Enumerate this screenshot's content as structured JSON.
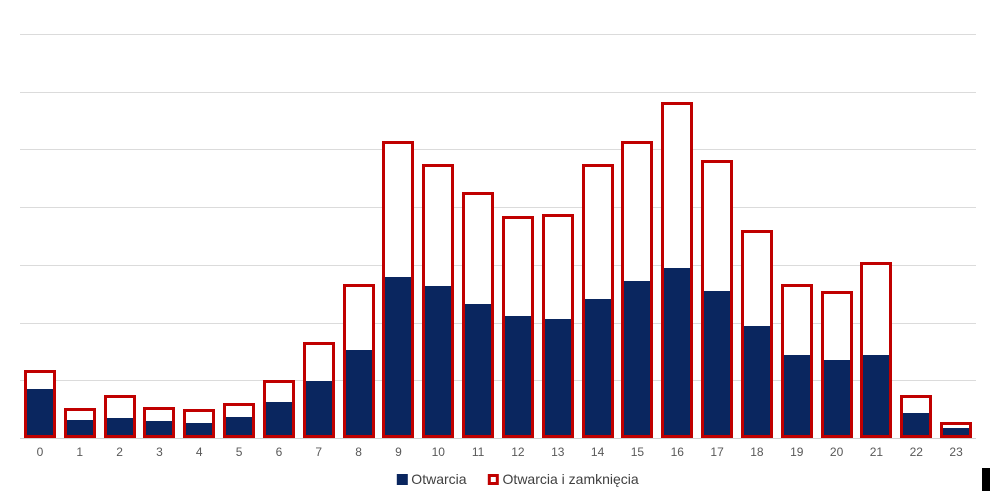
{
  "chart_data": {
    "type": "bar",
    "title": "",
    "xlabel": "",
    "ylabel": "",
    "categories": [
      "0",
      "1",
      "2",
      "3",
      "4",
      "5",
      "6",
      "7",
      "8",
      "9",
      "10",
      "11",
      "12",
      "13",
      "14",
      "15",
      "16",
      "17",
      "18",
      "19",
      "20",
      "21",
      "22",
      "23"
    ],
    "series": [
      {
        "name": "Otwarcia",
        "style": "filled",
        "color": "#0A265F",
        "values": [
          85,
          32,
          35,
          29,
          26,
          36,
          63,
          99,
          152,
          279,
          264,
          233,
          212,
          206,
          241,
          272,
          295,
          255,
          194,
          143,
          136,
          144,
          44,
          18
        ]
      },
      {
        "name": "Otwarcia i zamknięcia",
        "style": "outlined",
        "color": "#C00000",
        "values": [
          117,
          52,
          75,
          53,
          50,
          61,
          100,
          166,
          266,
          514,
          475,
          427,
          384,
          388,
          474,
          514,
          583,
          482,
          361,
          266,
          255,
          305,
          75,
          27
        ]
      }
    ],
    "ylim": [
      0,
      760
    ],
    "gridline_step": 100,
    "gridline_count": 7,
    "y_axis_labels_visible": false,
    "grid": "horizontal",
    "legend_position": "bottom-center"
  },
  "colors": {
    "bar_fill": "#0A265F",
    "bar_outline": "#C00000",
    "gridline": "#DBDBDB",
    "axis_line": "#D2D2D2",
    "axis_label_text": "#595959",
    "legend_text": "#404040",
    "background": "#FFFFFF",
    "artifact": "#000000"
  }
}
